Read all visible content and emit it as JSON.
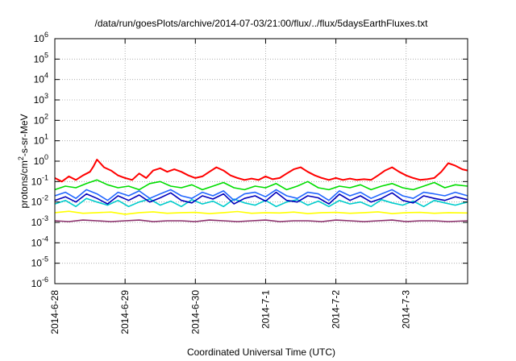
{
  "chart_data": {
    "type": "line",
    "title": "/data/run/goesPlots/archive/2014-07-03/21:00/flux/../flux/5daysEarthFluxes.txt",
    "xlabel": "Coordinated Universal Time (UTC)",
    "ylabel_parts": [
      "protons/cm",
      "2",
      "-s-sr-MeV"
    ],
    "x_ticks": [
      "2014-6-28",
      "2014-6-29",
      "2014-6-30",
      "2014-7-1",
      "2014-7-2",
      "2014-7-3"
    ],
    "xlim": [
      "2014-06-28T00:00",
      "2014-07-03T21:00"
    ],
    "y_scale": "log",
    "ylim": [
      1e-06,
      1000000.0
    ],
    "y_ticks": [
      {
        "base": "10",
        "exp": "-6"
      },
      {
        "base": "10",
        "exp": "-5"
      },
      {
        "base": "10",
        "exp": "-4"
      },
      {
        "base": "10",
        "exp": "-3"
      },
      {
        "base": "10",
        "exp": "-2"
      },
      {
        "base": "10",
        "exp": "-1"
      },
      {
        "base": "10",
        "exp": "0"
      },
      {
        "base": "10",
        "exp": "1"
      },
      {
        "base": "10",
        "exp": "2"
      },
      {
        "base": "10",
        "exp": "3"
      },
      {
        "base": "10",
        "exp": "4"
      },
      {
        "base": "10",
        "exp": "5"
      },
      {
        "base": "10",
        "exp": "6"
      }
    ],
    "grid": true,
    "series": [
      {
        "color": "#ff0000",
        "x": [
          0,
          0.1,
          0.2,
          0.3,
          0.4,
          0.5,
          0.55,
          0.6,
          0.7,
          0.8,
          0.9,
          1.0,
          1.1,
          1.2,
          1.3,
          1.4,
          1.5,
          1.6,
          1.7,
          1.8,
          1.9,
          2.0,
          2.1,
          2.2,
          2.3,
          2.4,
          2.5,
          2.6,
          2.7,
          2.8,
          2.9,
          3.0,
          3.1,
          3.2,
          3.3,
          3.4,
          3.5,
          3.6,
          3.7,
          3.8,
          3.9,
          4.0,
          4.1,
          4.2,
          4.3,
          4.4,
          4.5,
          4.6,
          4.7,
          4.8,
          4.9,
          5.0,
          5.1,
          5.2,
          5.3,
          5.4,
          5.5,
          5.6,
          5.7,
          5.8,
          5.875
        ],
        "y": [
          0.15,
          0.1,
          0.18,
          0.12,
          0.2,
          0.3,
          0.55,
          1.2,
          0.5,
          0.35,
          0.2,
          0.15,
          0.12,
          0.25,
          0.15,
          0.35,
          0.45,
          0.3,
          0.4,
          0.3,
          0.2,
          0.15,
          0.18,
          0.3,
          0.5,
          0.35,
          0.2,
          0.15,
          0.12,
          0.14,
          0.12,
          0.18,
          0.13,
          0.15,
          0.25,
          0.4,
          0.5,
          0.3,
          0.2,
          0.15,
          0.12,
          0.15,
          0.12,
          0.14,
          0.12,
          0.13,
          0.12,
          0.2,
          0.35,
          0.5,
          0.3,
          0.2,
          0.15,
          0.12,
          0.13,
          0.15,
          0.3,
          0.8,
          0.6,
          0.4,
          0.35
        ]
      },
      {
        "color": "#00dd00",
        "x": [
          0,
          0.15,
          0.3,
          0.45,
          0.6,
          0.75,
          0.9,
          1.05,
          1.2,
          1.35,
          1.5,
          1.65,
          1.8,
          1.95,
          2.1,
          2.25,
          2.4,
          2.55,
          2.7,
          2.85,
          3.0,
          3.15,
          3.3,
          3.45,
          3.6,
          3.75,
          3.9,
          4.05,
          4.2,
          4.35,
          4.5,
          4.65,
          4.8,
          4.95,
          5.1,
          5.25,
          5.4,
          5.55,
          5.7,
          5.875
        ],
        "y": [
          0.04,
          0.06,
          0.05,
          0.08,
          0.12,
          0.07,
          0.05,
          0.06,
          0.04,
          0.08,
          0.1,
          0.06,
          0.05,
          0.07,
          0.04,
          0.06,
          0.09,
          0.05,
          0.04,
          0.06,
          0.05,
          0.08,
          0.04,
          0.06,
          0.1,
          0.05,
          0.04,
          0.06,
          0.05,
          0.07,
          0.04,
          0.06,
          0.08,
          0.05,
          0.04,
          0.06,
          0.09,
          0.05,
          0.07,
          0.06
        ]
      },
      {
        "color": "#00cccc",
        "x": [
          0,
          0.15,
          0.3,
          0.45,
          0.6,
          0.75,
          0.9,
          1.05,
          1.2,
          1.35,
          1.5,
          1.65,
          1.8,
          1.95,
          2.1,
          2.25,
          2.4,
          2.55,
          2.7,
          2.85,
          3.0,
          3.15,
          3.3,
          3.45,
          3.6,
          3.75,
          3.9,
          4.05,
          4.2,
          4.35,
          4.5,
          4.65,
          4.8,
          4.95,
          5.1,
          5.25,
          5.4,
          5.55,
          5.7,
          5.875
        ],
        "y": [
          0.008,
          0.012,
          0.006,
          0.015,
          0.01,
          0.007,
          0.012,
          0.006,
          0.01,
          0.014,
          0.007,
          0.011,
          0.006,
          0.013,
          0.008,
          0.011,
          0.006,
          0.014,
          0.009,
          0.007,
          0.012,
          0.006,
          0.01,
          0.013,
          0.007,
          0.011,
          0.006,
          0.012,
          0.008,
          0.01,
          0.006,
          0.013,
          0.009,
          0.007,
          0.011,
          0.006,
          0.012,
          0.009,
          0.007,
          0.01
        ]
      },
      {
        "color": "#2266ff",
        "x": [
          0,
          0.15,
          0.3,
          0.45,
          0.6,
          0.75,
          0.9,
          1.05,
          1.2,
          1.35,
          1.5,
          1.65,
          1.8,
          1.95,
          2.1,
          2.25,
          2.4,
          2.55,
          2.7,
          2.85,
          3.0,
          3.15,
          3.3,
          3.45,
          3.6,
          3.75,
          3.9,
          4.05,
          4.2,
          4.35,
          4.5,
          4.65,
          4.8,
          4.95,
          5.1,
          5.25,
          5.4,
          5.55,
          5.7,
          5.875
        ],
        "y": [
          0.02,
          0.03,
          0.015,
          0.04,
          0.025,
          0.012,
          0.03,
          0.02,
          0.035,
          0.015,
          0.025,
          0.04,
          0.02,
          0.015,
          0.03,
          0.02,
          0.035,
          0.012,
          0.025,
          0.03,
          0.018,
          0.04,
          0.02,
          0.015,
          0.03,
          0.025,
          0.012,
          0.035,
          0.02,
          0.03,
          0.015,
          0.025,
          0.04,
          0.02,
          0.015,
          0.03,
          0.025,
          0.02,
          0.03,
          0.02
        ]
      },
      {
        "color": "#0000bb",
        "x": [
          0,
          0.15,
          0.3,
          0.45,
          0.6,
          0.75,
          0.9,
          1.05,
          1.2,
          1.35,
          1.5,
          1.65,
          1.8,
          1.95,
          2.1,
          2.25,
          2.4,
          2.55,
          2.7,
          2.85,
          3.0,
          3.15,
          3.3,
          3.45,
          3.6,
          3.75,
          3.9,
          4.05,
          4.2,
          4.35,
          4.5,
          4.65,
          4.8,
          4.95,
          5.1,
          5.25,
          5.4,
          5.55,
          5.7,
          5.875
        ],
        "y": [
          0.012,
          0.018,
          0.01,
          0.025,
          0.015,
          0.008,
          0.02,
          0.012,
          0.022,
          0.01,
          0.016,
          0.028,
          0.012,
          0.009,
          0.02,
          0.014,
          0.025,
          0.008,
          0.015,
          0.02,
          0.011,
          0.03,
          0.012,
          0.01,
          0.02,
          0.016,
          0.008,
          0.024,
          0.012,
          0.02,
          0.01,
          0.015,
          0.028,
          0.012,
          0.009,
          0.02,
          0.015,
          0.012,
          0.018,
          0.013
        ]
      },
      {
        "color": "#ffff00",
        "x": [
          0,
          0.2,
          0.4,
          0.6,
          0.8,
          1.0,
          1.2,
          1.4,
          1.6,
          1.8,
          2.0,
          2.2,
          2.4,
          2.6,
          2.8,
          3.0,
          3.2,
          3.4,
          3.6,
          3.8,
          4.0,
          4.2,
          4.4,
          4.6,
          4.8,
          5.0,
          5.2,
          5.4,
          5.6,
          5.875
        ],
        "y": [
          0.003,
          0.0035,
          0.0028,
          0.003,
          0.0032,
          0.0025,
          0.003,
          0.0033,
          0.0028,
          0.003,
          0.0031,
          0.0027,
          0.003,
          0.0034,
          0.0028,
          0.003,
          0.0029,
          0.0032,
          0.0027,
          0.003,
          0.0031,
          0.0028,
          0.003,
          0.0033,
          0.0027,
          0.003,
          0.0031,
          0.0028,
          0.003,
          0.0029
        ]
      },
      {
        "color": "#8b2f6b",
        "x": [
          0,
          0.2,
          0.4,
          0.6,
          0.8,
          1.0,
          1.2,
          1.4,
          1.6,
          1.8,
          2.0,
          2.2,
          2.4,
          2.6,
          2.8,
          3.0,
          3.2,
          3.4,
          3.6,
          3.8,
          4.0,
          4.2,
          4.4,
          4.6,
          4.8,
          5.0,
          5.2,
          5.4,
          5.6,
          5.875
        ],
        "y": [
          0.0012,
          0.0011,
          0.0013,
          0.0012,
          0.0011,
          0.0012,
          0.0013,
          0.0011,
          0.0012,
          0.0012,
          0.0011,
          0.0013,
          0.0012,
          0.0011,
          0.0012,
          0.0013,
          0.0011,
          0.0012,
          0.0012,
          0.0011,
          0.0013,
          0.0012,
          0.0011,
          0.0012,
          0.0013,
          0.0011,
          0.0012,
          0.0012,
          0.0011,
          0.0012
        ]
      }
    ]
  }
}
